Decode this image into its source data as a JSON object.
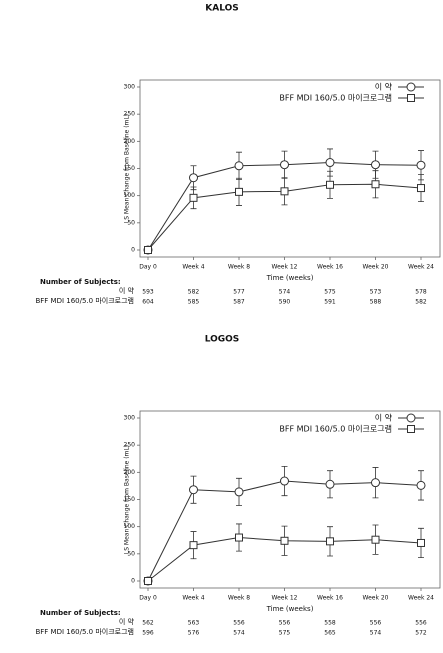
{
  "chart_data": [
    {
      "type": "line",
      "title": "KALOS",
      "ylabel": "LS Mean Change from Baseline (mL)",
      "xlabel": "Time (weeks)",
      "categories": [
        "Day 0",
        "Week 4",
        "Week 8",
        "Week 12",
        "Week 16",
        "Week 20",
        "Week 24"
      ],
      "ylim": [
        0,
        300
      ],
      "yticks": [
        0,
        50,
        100,
        150,
        200,
        250,
        300
      ],
      "legend": "upper right",
      "series": [
        {
          "name": "이 약",
          "color": "#333333",
          "marker": "circle",
          "values": [
            0,
            133,
            155,
            157,
            161,
            157,
            156
          ],
          "errors": [
            0,
            22,
            25,
            25,
            25,
            25,
            27
          ]
        },
        {
          "name": "BFF MDI 160/5.0 마이크로그램",
          "color": "#333333",
          "marker": "square",
          "values": [
            0,
            96,
            107,
            108,
            120,
            121,
            114
          ],
          "errors": [
            0,
            20,
            25,
            25,
            25,
            25,
            25
          ]
        }
      ],
      "subjects": {
        "label": "Number of Subjects:",
        "rows": [
          [
            593,
            582,
            577,
            574,
            575,
            573,
            578
          ],
          [
            604,
            585,
            587,
            590,
            591,
            588,
            582
          ]
        ]
      }
    },
    {
      "type": "line",
      "title": "LOGOS",
      "ylabel": "LS Mean Change from Baseline (mL)",
      "xlabel": "Time (weeks)",
      "categories": [
        "Day 0",
        "Week 4",
        "Week 8",
        "Week 12",
        "Week 16",
        "Week 20",
        "Week 24"
      ],
      "ylim": [
        0,
        300
      ],
      "yticks": [
        0,
        50,
        100,
        150,
        200,
        250,
        300
      ],
      "legend": "upper right",
      "series": [
        {
          "name": "이 약",
          "color": "#333333",
          "marker": "circle",
          "values": [
            0,
            168,
            164,
            184,
            178,
            181,
            176
          ],
          "errors": [
            0,
            25,
            25,
            27,
            25,
            28,
            27
          ]
        },
        {
          "name": "BFF MDI 160/5.0 마이크로그램",
          "color": "#333333",
          "marker": "square",
          "values": [
            0,
            66,
            80,
            74,
            73,
            76,
            70
          ],
          "errors": [
            0,
            25,
            25,
            27,
            27,
            27,
            27
          ]
        }
      ],
      "subjects": {
        "label": "Number of Subjects:",
        "rows": [
          [
            562,
            563,
            556,
            556,
            558,
            556,
            556
          ],
          [
            596,
            576,
            574,
            575,
            565,
            574,
            572
          ]
        ]
      }
    }
  ]
}
